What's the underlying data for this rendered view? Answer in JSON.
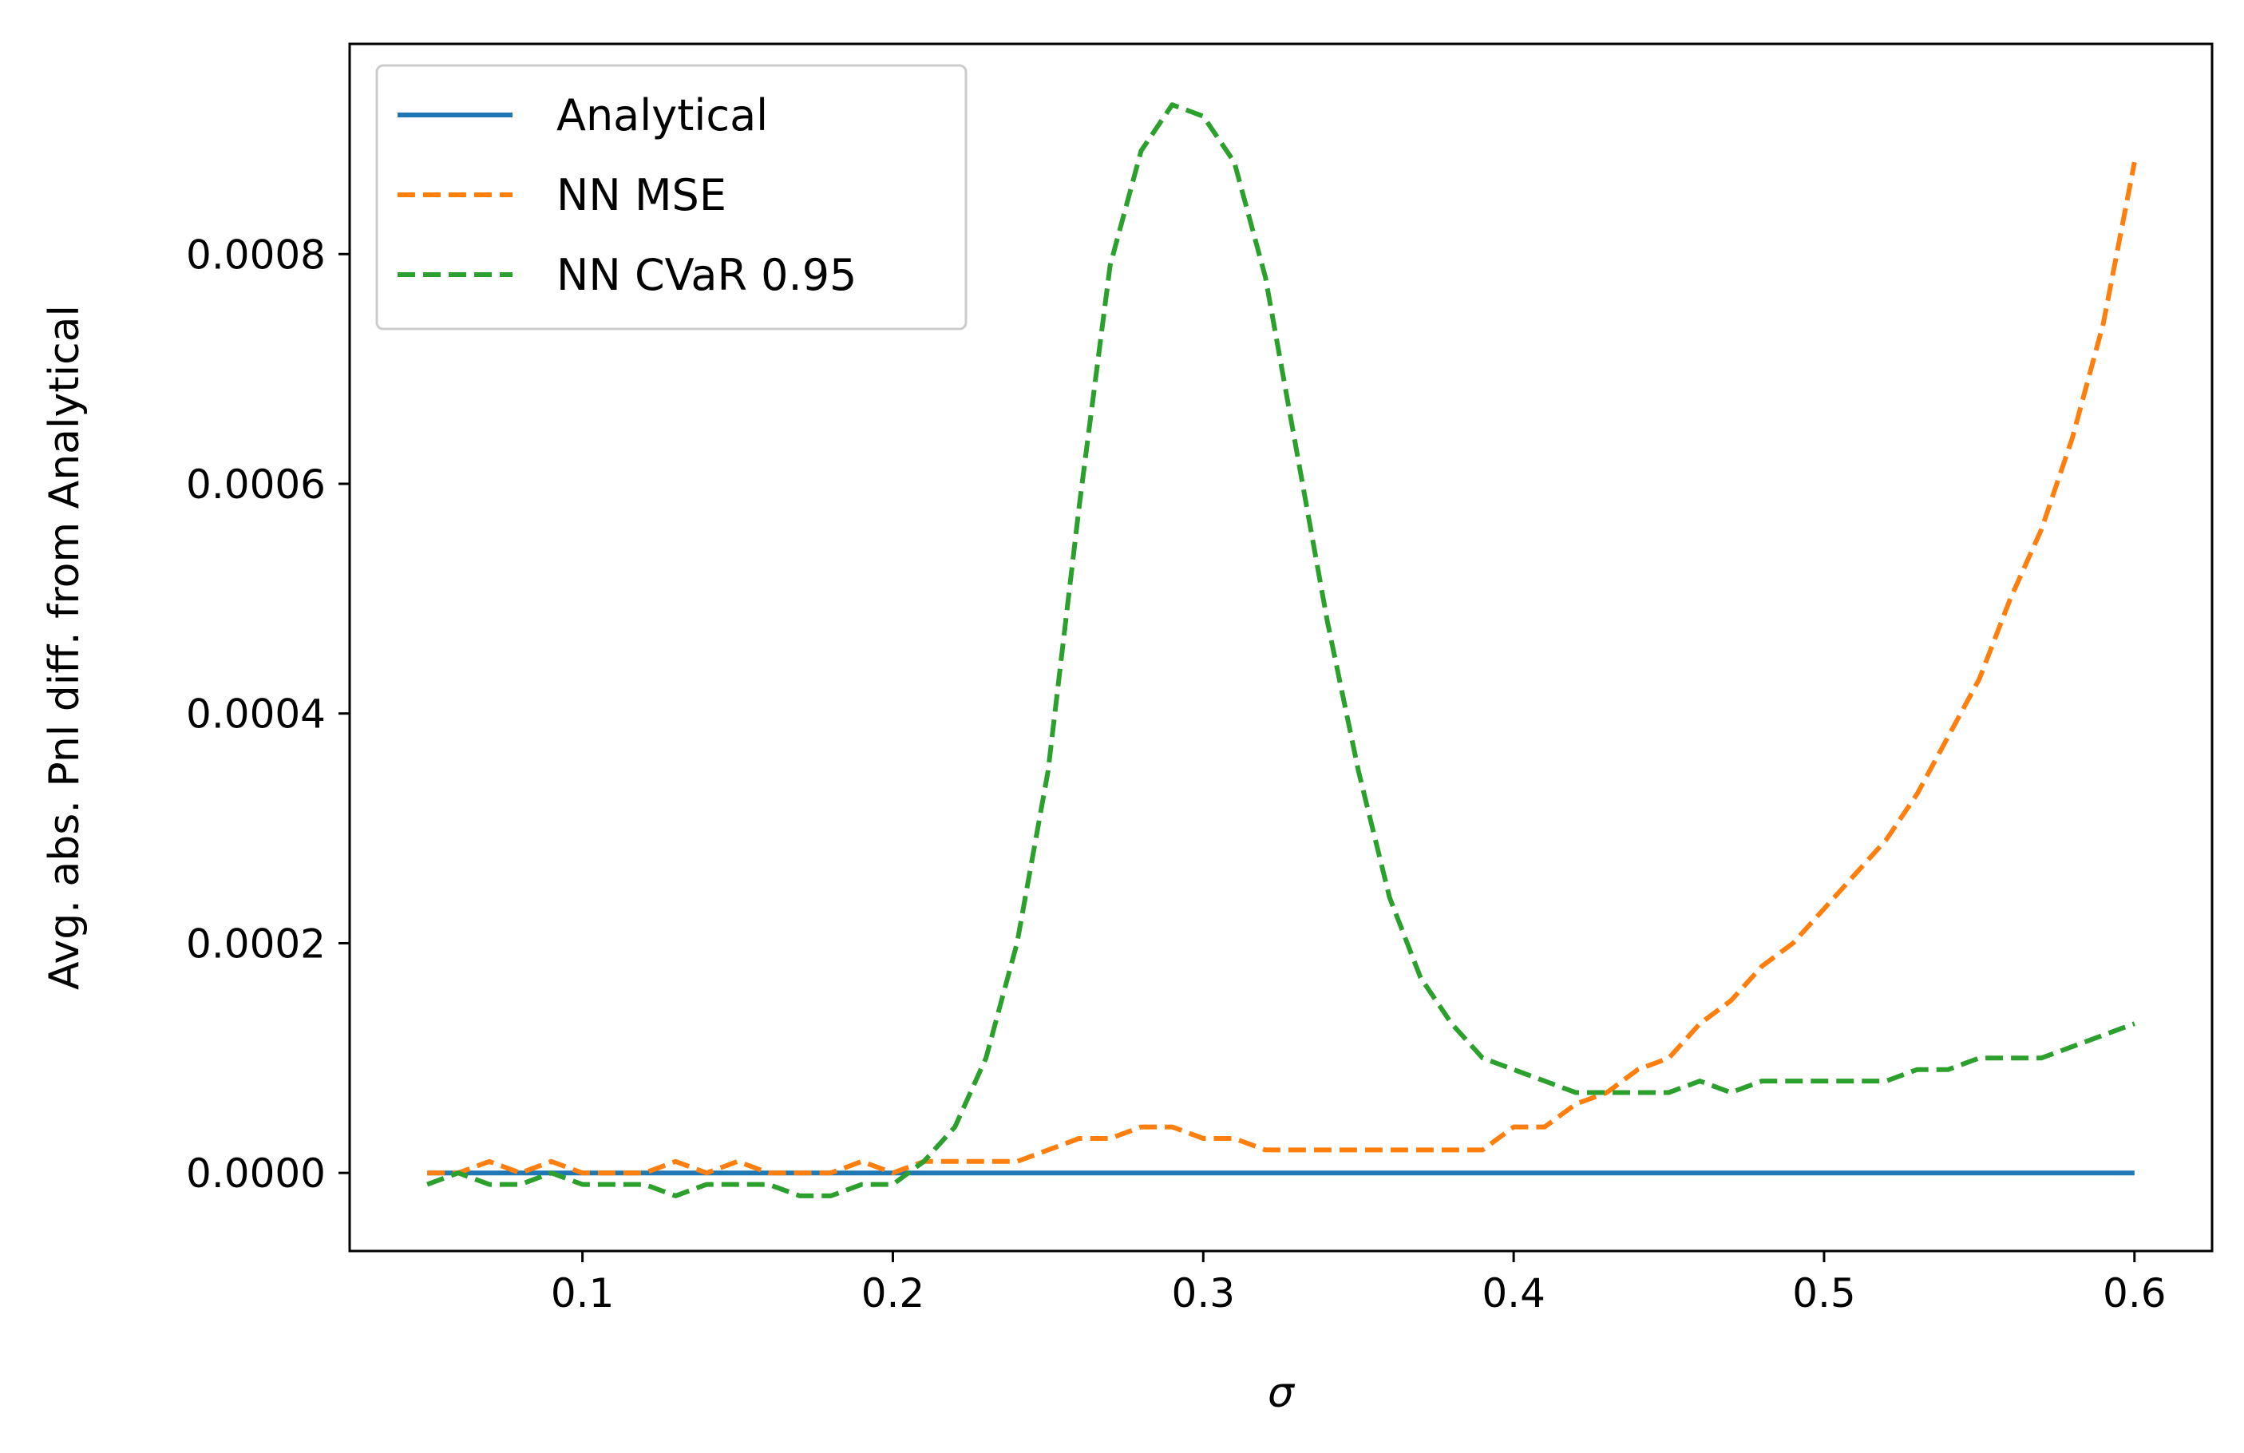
{
  "chart_data": {
    "type": "line",
    "xlabel": "σ",
    "ylabel": "Avg. abs. Pnl diff. from Analytical",
    "xlim": [
      0.025,
      0.625
    ],
    "ylim": [
      -6.8e-05,
      0.000983
    ],
    "xticks": [
      0.1,
      0.2,
      0.3,
      0.4,
      0.5,
      0.6
    ],
    "xtick_labels": [
      "0.1",
      "0.2",
      "0.3",
      "0.4",
      "0.5",
      "0.6"
    ],
    "yticks": [
      0.0,
      0.0002,
      0.0004,
      0.0006,
      0.0008
    ],
    "ytick_labels": [
      "0.0000",
      "0.0002",
      "0.0004",
      "0.0006",
      "0.0008"
    ],
    "grid": false,
    "legend_position": "top-left",
    "series": [
      {
        "name": "Analytical",
        "color": "#1f77b4",
        "style": "solid",
        "x": [
          0.05,
          0.6
        ],
        "y": [
          0.0,
          0.0
        ]
      },
      {
        "name": "NN MSE",
        "color": "#ff7f0e",
        "style": "dashed",
        "x": [
          0.05,
          0.06,
          0.07,
          0.08,
          0.09,
          0.1,
          0.11,
          0.12,
          0.13,
          0.14,
          0.15,
          0.16,
          0.17,
          0.18,
          0.19,
          0.2,
          0.21,
          0.22,
          0.23,
          0.24,
          0.25,
          0.26,
          0.27,
          0.28,
          0.29,
          0.3,
          0.31,
          0.32,
          0.33,
          0.34,
          0.35,
          0.36,
          0.37,
          0.38,
          0.39,
          0.4,
          0.41,
          0.42,
          0.43,
          0.44,
          0.45,
          0.46,
          0.47,
          0.48,
          0.49,
          0.5,
          0.51,
          0.52,
          0.53,
          0.54,
          0.55,
          0.56,
          0.57,
          0.58,
          0.59,
          0.6
        ],
        "y": [
          0.0,
          0.0,
          1e-05,
          0.0,
          1e-05,
          0.0,
          0.0,
          0.0,
          1e-05,
          0.0,
          1e-05,
          0.0,
          0.0,
          0.0,
          1e-05,
          0.0,
          1e-05,
          1e-05,
          1e-05,
          1e-05,
          2e-05,
          3e-05,
          3e-05,
          4e-05,
          4e-05,
          3e-05,
          3e-05,
          2e-05,
          2e-05,
          2e-05,
          2e-05,
          2e-05,
          2e-05,
          2e-05,
          2e-05,
          4e-05,
          4e-05,
          6e-05,
          7e-05,
          9e-05,
          0.0001,
          0.00013,
          0.00015,
          0.00018,
          0.0002,
          0.00023,
          0.00026,
          0.00029,
          0.00033,
          0.00038,
          0.00043,
          0.0005,
          0.00056,
          0.00064,
          0.00074,
          0.00088
        ]
      },
      {
        "name": "NN CVaR 0.95",
        "color": "#2ca02c",
        "style": "dashed",
        "x": [
          0.05,
          0.06,
          0.07,
          0.08,
          0.09,
          0.1,
          0.11,
          0.12,
          0.13,
          0.14,
          0.15,
          0.16,
          0.17,
          0.18,
          0.19,
          0.2,
          0.21,
          0.22,
          0.23,
          0.24,
          0.25,
          0.26,
          0.27,
          0.28,
          0.29,
          0.3,
          0.31,
          0.32,
          0.33,
          0.34,
          0.35,
          0.36,
          0.37,
          0.38,
          0.39,
          0.4,
          0.41,
          0.42,
          0.43,
          0.44,
          0.45,
          0.46,
          0.47,
          0.48,
          0.49,
          0.5,
          0.51,
          0.52,
          0.53,
          0.54,
          0.55,
          0.56,
          0.57,
          0.58,
          0.59,
          0.6
        ],
        "y": [
          -1e-05,
          0.0,
          -1e-05,
          -1e-05,
          0.0,
          -1e-05,
          -1e-05,
          -1e-05,
          -2e-05,
          -1e-05,
          -1e-05,
          -1e-05,
          -2e-05,
          -2e-05,
          -1e-05,
          -1e-05,
          1e-05,
          4e-05,
          0.0001,
          0.0002,
          0.00035,
          0.00058,
          0.00079,
          0.00089,
          0.00093,
          0.00092,
          0.00088,
          0.00078,
          0.00063,
          0.00048,
          0.00035,
          0.00024,
          0.00017,
          0.00013,
          0.0001,
          9e-05,
          8e-05,
          7e-05,
          7e-05,
          7e-05,
          7e-05,
          8e-05,
          7e-05,
          8e-05,
          8e-05,
          8e-05,
          8e-05,
          8e-05,
          9e-05,
          9e-05,
          0.0001,
          0.0001,
          0.0001,
          0.00011,
          0.00012,
          0.00013
        ]
      }
    ]
  }
}
